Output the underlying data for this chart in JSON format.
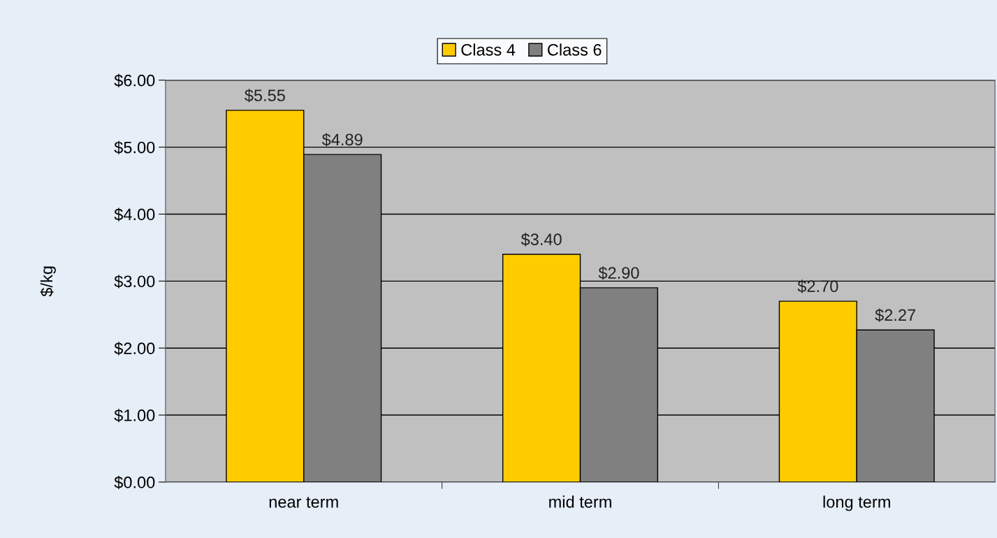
{
  "chart_data": {
    "type": "bar",
    "ylabel": "$/kg",
    "categories": [
      "near term",
      "mid term",
      "long term"
    ],
    "series": [
      {
        "name": "Class 4",
        "color": "#ffcc00",
        "values": [
          5.55,
          3.4,
          2.7
        ],
        "value_labels": [
          "$5.55",
          "$3.40",
          "$2.70"
        ]
      },
      {
        "name": "Class 6",
        "color": "#808080",
        "values": [
          4.89,
          2.9,
          2.27
        ],
        "value_labels": [
          "$4.89",
          "$2.90",
          "$2.27"
        ]
      }
    ],
    "ylim": [
      0,
      6
    ],
    "yticks": [
      {
        "value": 0,
        "label": "$0.00"
      },
      {
        "value": 1,
        "label": "$1.00"
      },
      {
        "value": 2,
        "label": "$2.00"
      },
      {
        "value": 3,
        "label": "$3.00"
      },
      {
        "value": 4,
        "label": "$4.00"
      },
      {
        "value": 5,
        "label": "$5.00"
      },
      {
        "value": 6,
        "label": "$6.00"
      }
    ],
    "grid": "y",
    "legend": "top"
  }
}
